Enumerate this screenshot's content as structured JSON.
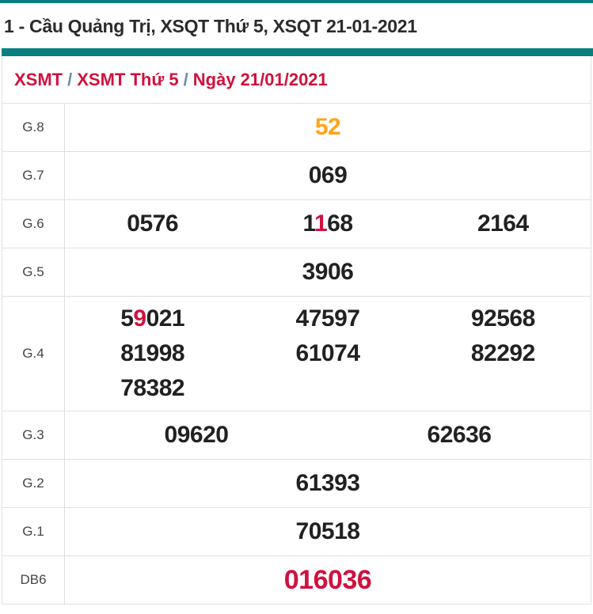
{
  "page": {
    "title": "1 - Cầu Quảng Trị, XSQT Thứ 5, XSQT 21-01-2021"
  },
  "breadcrumb": {
    "separator": "/",
    "items": [
      {
        "label": "XSMT"
      },
      {
        "label": "XSMT Thứ 5"
      },
      {
        "label": "Ngày 21/01/2021"
      }
    ]
  },
  "colors": {
    "accent_teal": "#087f7f",
    "number_dark": "#212121",
    "highlight_red": "#d0113f",
    "highlight_orange": "#ffa41b",
    "breadcrumb_red": "#d0113f",
    "breadcrumb_separator_blue": "#6d8ca8",
    "border_gray": "#e0e0e0",
    "label_gray": "#454545"
  },
  "prize_table": {
    "rows": [
      {
        "label": "G.8",
        "columns": 1,
        "size": "large",
        "cells": [
          [
            [
              "52",
              "orange"
            ]
          ]
        ]
      },
      {
        "label": "G.7",
        "columns": 1,
        "cells": [
          [
            [
              "069",
              "default"
            ]
          ]
        ]
      },
      {
        "label": "G.6",
        "columns": 3,
        "cells": [
          [
            [
              "0576",
              "default"
            ]
          ],
          [
            [
              "1",
              "default"
            ],
            [
              "1",
              "red"
            ],
            [
              "68",
              "default"
            ]
          ],
          [
            [
              "2164",
              "default"
            ]
          ]
        ]
      },
      {
        "label": "G.5",
        "columns": 1,
        "cells": [
          [
            [
              "3906",
              "default"
            ]
          ]
        ]
      },
      {
        "label": "G.4",
        "columns": 3,
        "cells": [
          [
            [
              "5",
              "default"
            ],
            [
              "9",
              "red"
            ],
            [
              "021",
              "default"
            ]
          ],
          [
            [
              "47597",
              "default"
            ]
          ],
          [
            [
              "92568",
              "default"
            ]
          ],
          [
            [
              "81998",
              "default"
            ]
          ],
          [
            [
              "61074",
              "default"
            ]
          ],
          [
            [
              "82292",
              "default"
            ]
          ],
          [
            [
              "78382",
              "default"
            ]
          ]
        ]
      },
      {
        "label": "G.3",
        "columns": 2,
        "cells": [
          [
            [
              "09620",
              "default"
            ]
          ],
          [
            [
              "62636",
              "default"
            ]
          ]
        ]
      },
      {
        "label": "G.2",
        "columns": 1,
        "cells": [
          [
            [
              "61393",
              "default"
            ]
          ]
        ]
      },
      {
        "label": "G.1",
        "columns": 1,
        "cells": [
          [
            [
              "70518",
              "default"
            ]
          ]
        ]
      },
      {
        "label": "DB6",
        "columns": 1,
        "size": "xlarge",
        "cells": [
          [
            [
              "016036",
              "db"
            ]
          ]
        ]
      }
    ]
  }
}
